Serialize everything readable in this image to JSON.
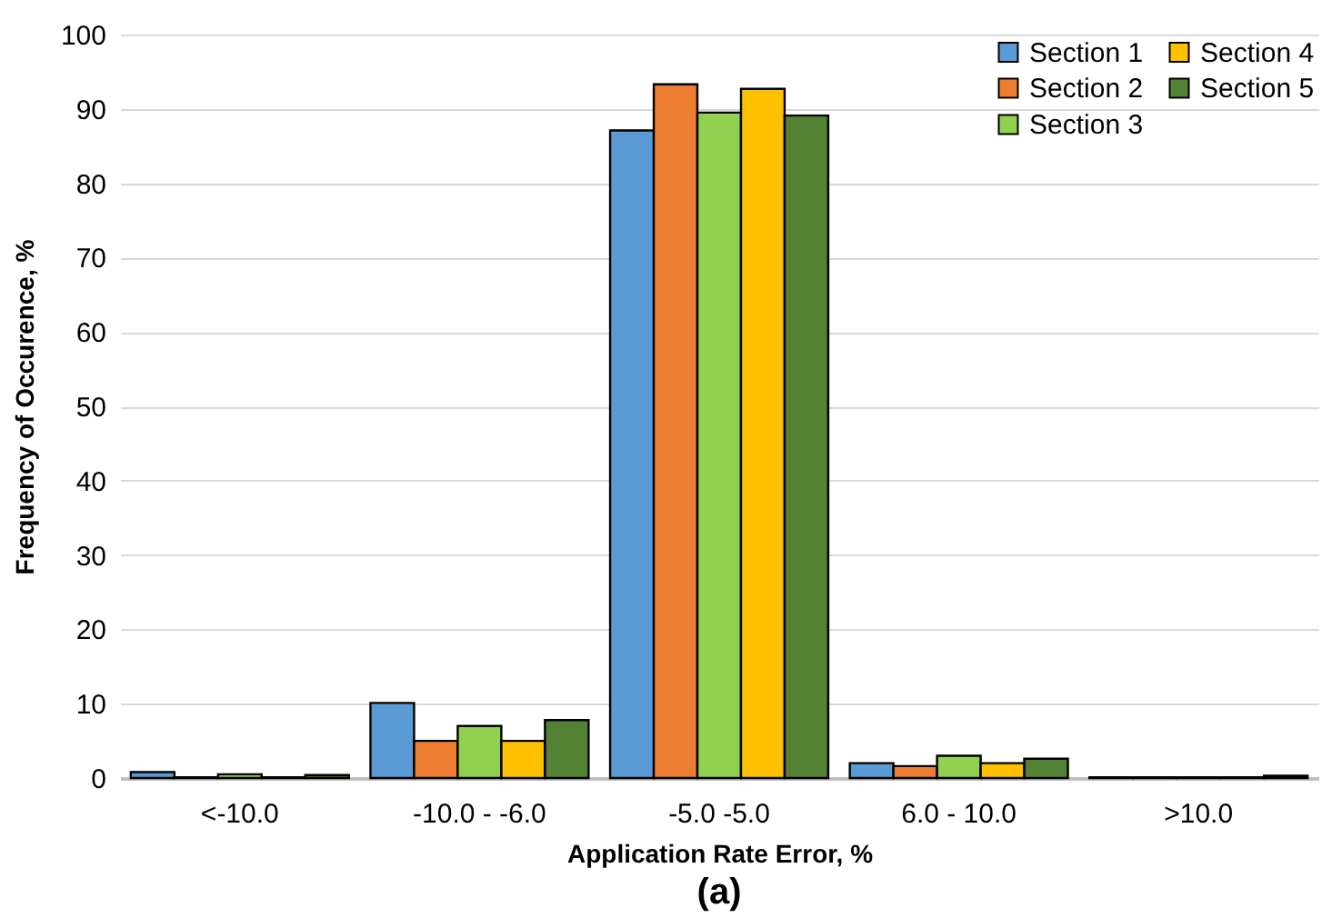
{
  "chart_data": {
    "type": "bar",
    "xlabel": "Application Rate Error, %",
    "ylabel": "Frequency of Occurence, %",
    "categories": [
      "<-10.0",
      "-10.0 - -6.0",
      "-5.0 -5.0",
      "6.0 - 10.0",
      ">10.0"
    ],
    "series": [
      {
        "name": "Section 1",
        "color": "#5b9bd5",
        "values": [
          0.8,
          10.1,
          87.1,
          2.0,
          0.1
        ]
      },
      {
        "name": "Section 2",
        "color": "#ed7d31",
        "values": [
          0.1,
          5.0,
          93.3,
          1.6,
          0.1
        ]
      },
      {
        "name": "Section 3",
        "color": "#92d050",
        "values": [
          0.5,
          7.0,
          89.5,
          3.0,
          0.1
        ]
      },
      {
        "name": "Section 4",
        "color": "#ffc000",
        "values": [
          0.1,
          5.0,
          92.7,
          2.0,
          0.1
        ]
      },
      {
        "name": "Section 5",
        "color": "#548235",
        "values": [
          0.4,
          7.8,
          89.1,
          2.6,
          0.3
        ]
      }
    ],
    "ylim": [
      0,
      100
    ],
    "yticks": [
      0,
      10,
      20,
      30,
      40,
      50,
      60,
      70,
      80,
      90,
      100
    ],
    "grid": "y",
    "legend": "top right",
    "annotations": [
      "(a)"
    ]
  }
}
